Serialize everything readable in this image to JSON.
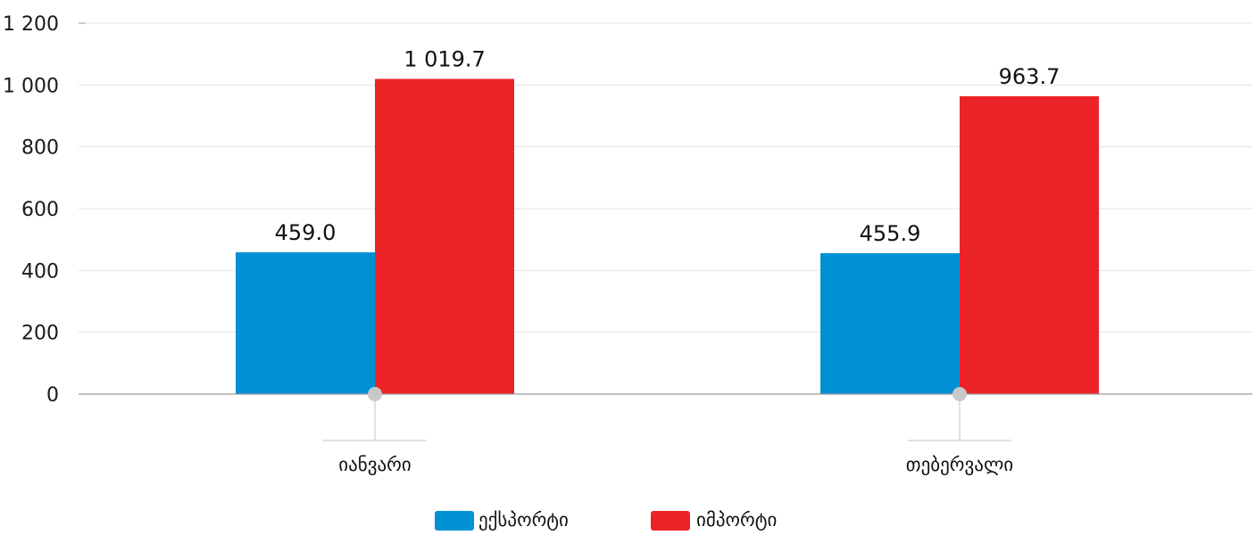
{
  "chart_data": {
    "type": "bar",
    "categories": [
      "იანვარი",
      "თებერვალი"
    ],
    "series": [
      {
        "name": "ექსპორტი",
        "values": [
          459.0,
          455.9
        ],
        "value_labels": [
          "459.0",
          "455.9"
        ],
        "color": "#0091D5"
      },
      {
        "name": "იმპორტი",
        "values": [
          1019.7,
          963.7
        ],
        "value_labels": [
          "1 019.7",
          "963.7"
        ],
        "color": "#EC2326"
      }
    ],
    "ylim": [
      0,
      1200
    ],
    "yticks": [
      0,
      200,
      400,
      600,
      800,
      1000,
      1200
    ],
    "ytick_labels": [
      "0",
      "200",
      "400",
      "600",
      "800",
      "1 000",
      "1 200"
    ],
    "grid": true,
    "legend_position": "bottom-center",
    "gridline_color": "#e3e3e3",
    "axis_color": "#9a9a9a",
    "marker_color": "#c8c8c8"
  }
}
